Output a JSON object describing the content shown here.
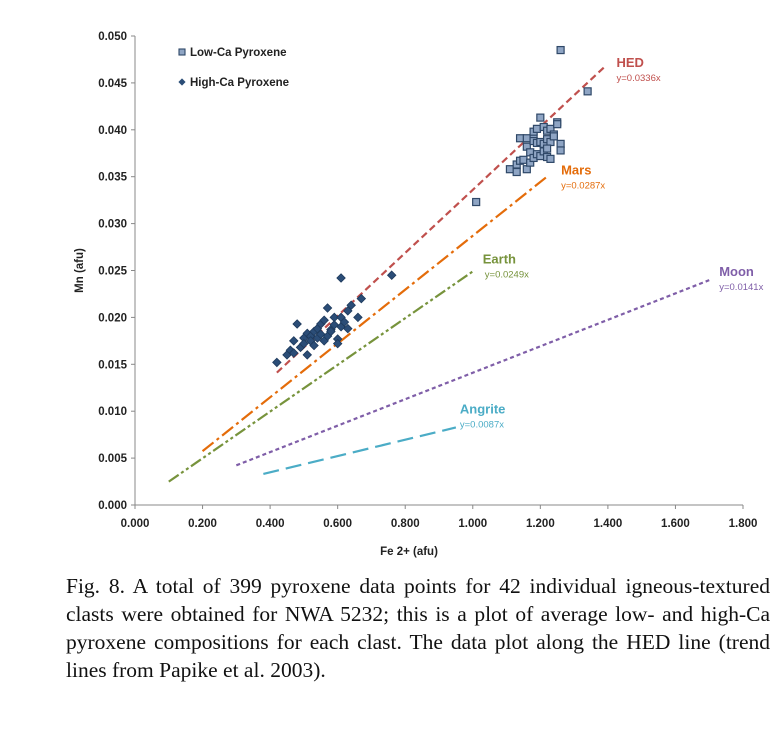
{
  "chart_data": {
    "type": "scatter",
    "xlabel": "Fe 2+ (afu)",
    "ylabel": "Mn (afu)",
    "xlim": [
      0,
      1.8
    ],
    "ylim": [
      0,
      0.05
    ],
    "x_ticks": [
      "0.000",
      "0.200",
      "0.400",
      "0.600",
      "0.800",
      "1.000",
      "1.200",
      "1.400",
      "1.600",
      "1.800"
    ],
    "y_ticks": [
      "0.000",
      "0.005",
      "0.010",
      "0.015",
      "0.020",
      "0.025",
      "0.030",
      "0.035",
      "0.040",
      "0.045",
      "0.050"
    ],
    "legend": {
      "position": "top-left",
      "entries": [
        {
          "name": "Low-Ca Pyroxene",
          "marker": "square"
        },
        {
          "name": "High-Ca Pyroxene",
          "marker": "diamond"
        }
      ]
    },
    "series": [
      {
        "name": "Low-Ca Pyroxene",
        "marker": "square",
        "color": "#8fa5c4",
        "points": [
          [
            1.26,
            0.0485
          ],
          [
            1.34,
            0.0441
          ],
          [
            1.01,
            0.0323
          ],
          [
            1.11,
            0.0358
          ],
          [
            1.13,
            0.0355
          ],
          [
            1.13,
            0.0363
          ],
          [
            1.14,
            0.0367
          ],
          [
            1.15,
            0.0368
          ],
          [
            1.14,
            0.0391
          ],
          [
            1.16,
            0.0391
          ],
          [
            1.18,
            0.0392
          ],
          [
            1.18,
            0.0398
          ],
          [
            1.19,
            0.0401
          ],
          [
            1.2,
            0.0413
          ],
          [
            1.21,
            0.0403
          ],
          [
            1.22,
            0.0399
          ],
          [
            1.23,
            0.0401
          ],
          [
            1.16,
            0.0382
          ],
          [
            1.17,
            0.0376
          ],
          [
            1.18,
            0.0388
          ],
          [
            1.19,
            0.0386
          ],
          [
            1.2,
            0.0387
          ],
          [
            1.21,
            0.0385
          ],
          [
            1.22,
            0.039
          ],
          [
            1.23,
            0.0387
          ],
          [
            1.24,
            0.0395
          ],
          [
            1.16,
            0.0358
          ],
          [
            1.17,
            0.0365
          ],
          [
            1.18,
            0.037
          ],
          [
            1.19,
            0.0374
          ],
          [
            1.2,
            0.0372
          ],
          [
            1.21,
            0.0377
          ],
          [
            1.22,
            0.0371
          ],
          [
            1.23,
            0.0369
          ],
          [
            1.22,
            0.038
          ],
          [
            1.25,
            0.0408
          ],
          [
            1.26,
            0.0385
          ],
          [
            1.26,
            0.0378
          ],
          [
            1.25,
            0.0406
          ],
          [
            1.24,
            0.0393
          ]
        ]
      },
      {
        "name": "High-Ca Pyroxene",
        "marker": "diamond",
        "color": "#2b4d77",
        "points": [
          [
            0.42,
            0.0152
          ],
          [
            0.45,
            0.016
          ],
          [
            0.46,
            0.0165
          ],
          [
            0.47,
            0.0162
          ],
          [
            0.47,
            0.0175
          ],
          [
            0.48,
            0.0193
          ],
          [
            0.49,
            0.0168
          ],
          [
            0.5,
            0.0178
          ],
          [
            0.5,
            0.0172
          ],
          [
            0.51,
            0.016
          ],
          [
            0.51,
            0.0183
          ],
          [
            0.52,
            0.018
          ],
          [
            0.52,
            0.0175
          ],
          [
            0.53,
            0.017
          ],
          [
            0.53,
            0.0185
          ],
          [
            0.54,
            0.0178
          ],
          [
            0.54,
            0.0188
          ],
          [
            0.55,
            0.0182
          ],
          [
            0.55,
            0.0193
          ],
          [
            0.56,
            0.0175
          ],
          [
            0.56,
            0.0197
          ],
          [
            0.57,
            0.021
          ],
          [
            0.57,
            0.018
          ],
          [
            0.58,
            0.0187
          ],
          [
            0.58,
            0.0185
          ],
          [
            0.59,
            0.02
          ],
          [
            0.59,
            0.0192
          ],
          [
            0.6,
            0.0177
          ],
          [
            0.6,
            0.0172
          ],
          [
            0.61,
            0.019
          ],
          [
            0.61,
            0.02
          ],
          [
            0.61,
            0.0242
          ],
          [
            0.62,
            0.0195
          ],
          [
            0.63,
            0.0188
          ],
          [
            0.63,
            0.0207
          ],
          [
            0.64,
            0.0213
          ],
          [
            0.66,
            0.02
          ],
          [
            0.67,
            0.022
          ],
          [
            0.76,
            0.0245
          ]
        ]
      }
    ],
    "trend_lines": [
      {
        "name": "HED",
        "equation": "y=0.0336x",
        "slope": 0.0336,
        "x_range": [
          0.42,
          1.39
        ],
        "color": "#c0504d",
        "dash": "dashed"
      },
      {
        "name": "Mars",
        "equation": "y=0.0287x",
        "slope": 0.0287,
        "x_range": [
          0.2,
          1.22
        ],
        "color": "#e46c0a",
        "dash": "dash-dot"
      },
      {
        "name": "Earth",
        "equation": "y=0.0249x",
        "slope": 0.0249,
        "x_range": [
          0.1,
          1.0
        ],
        "color": "#77933c",
        "dash": "dash-dot-dot"
      },
      {
        "name": "Moon",
        "equation": "y=0.0141x",
        "slope": 0.0141,
        "x_range": [
          0.3,
          1.7
        ],
        "color": "#7f5ea8",
        "dash": "dotted"
      },
      {
        "name": "Angrite",
        "equation": "y=0.0087x",
        "slope": 0.0087,
        "x_range": [
          0.38,
          0.95
        ],
        "color": "#4bacc6",
        "dash": "long-dash"
      }
    ]
  },
  "caption": "Fig. 8. A total of 399 pyroxene data points for 42 individual igneous-textured clasts were obtained for NWA 5232; this is a plot of average low- and high-Ca pyroxene compositions for each clast. The data plot along the HED line (trend lines from Papike et al. 2003)."
}
